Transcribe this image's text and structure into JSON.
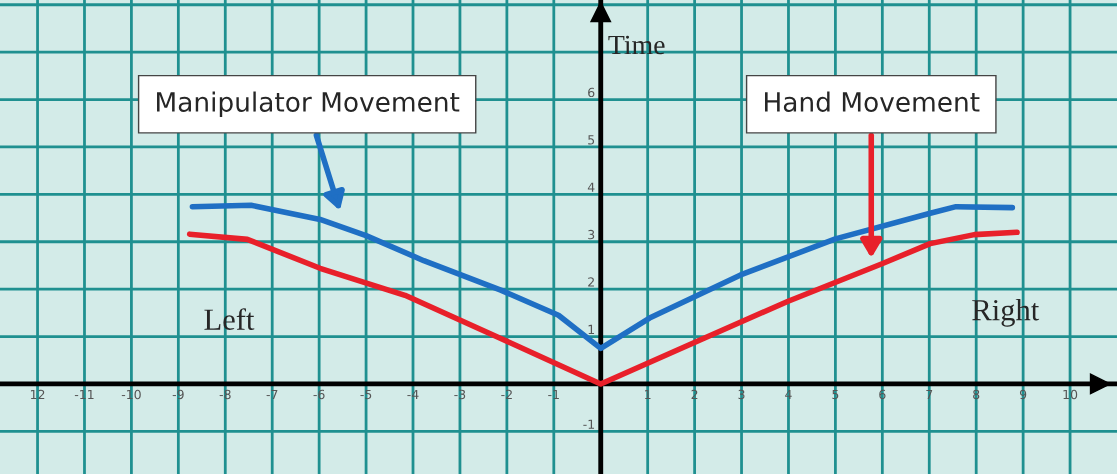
{
  "chart_data": {
    "type": "line",
    "ylabel": "Time",
    "xlim": [
      -12.8,
      11
    ],
    "ylim": [
      -1.9,
      8.1
    ],
    "xticks": [
      {
        "value": -12,
        "label": "12"
      },
      -11,
      -10,
      -9,
      -8,
      -7,
      -6,
      -5,
      -4,
      -3,
      -2,
      -1,
      {
        "value": 0,
        "label": null
      },
      1,
      2,
      3,
      4,
      5,
      6,
      7,
      8,
      9,
      10
    ],
    "yticks": [
      -1,
      {
        "value": 0,
        "label": null
      },
      1,
      2,
      3,
      4,
      5,
      6,
      {
        "value": 7,
        "label": null
      },
      {
        "value": 8,
        "label": null
      }
    ],
    "grid": true,
    "marker": "none",
    "line_style": "solid",
    "series": [
      {
        "color": "#1f6fc4",
        "x": [
          -8.7,
          -7.45,
          -5.98,
          -5.0,
          -3.77,
          -2.13,
          -0.9,
          0,
          1.04,
          2.98,
          5.0,
          7.02,
          7.57,
          8.77
        ],
        "values": [
          3.74,
          3.77,
          3.47,
          3.13,
          2.6,
          1.98,
          1.45,
          0.75,
          1.39,
          2.3,
          3.06,
          3.6,
          3.74,
          3.72
        ]
      },
      {
        "color": "#e8202a",
        "x": [
          -8.76,
          -7.53,
          -5.98,
          -4.17,
          -2.13,
          0,
          1.96,
          3.98,
          5.98,
          7.02,
          7.96,
          8.87
        ],
        "values": [
          3.16,
          3.05,
          2.44,
          1.87,
          0.96,
          0,
          0.86,
          1.74,
          2.53,
          2.96,
          3.15,
          3.2
        ]
      }
    ],
    "annotations": [
      "Manipulator Movement",
      "Hand Movement",
      "Left",
      "Right"
    ]
  }
}
